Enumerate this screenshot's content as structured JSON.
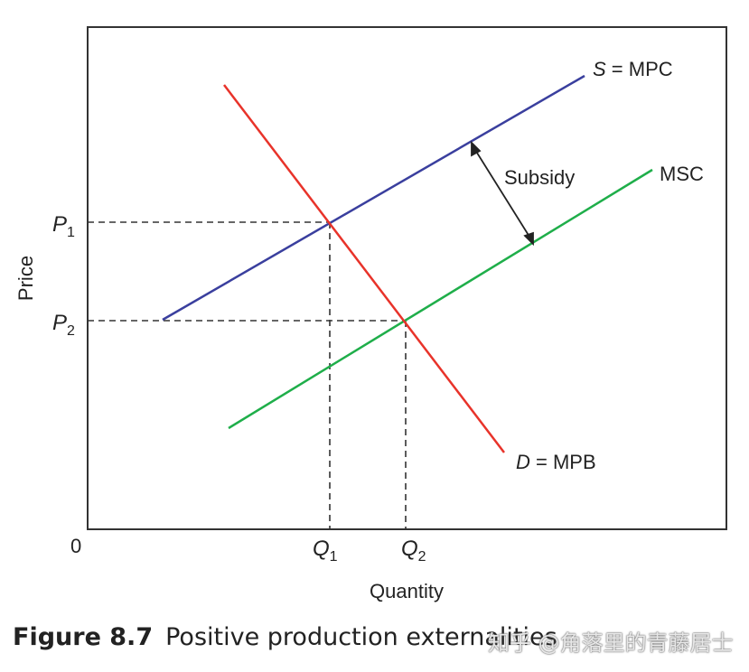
{
  "labels": {
    "origin": "0",
    "y_axis": "Price",
    "x_axis": "Quantity",
    "p1": "P",
    "p1_sub": "1",
    "p2": "P",
    "p2_sub": "2",
    "q1": "Q",
    "q1_sub": "1",
    "q2": "Q",
    "q2_sub": "2",
    "supply_letter": "S",
    "supply_rest": " = MPC",
    "msc": "MSC",
    "demand_letter": "D",
    "demand_rest": " = MPB",
    "subsidy": "Subsidy"
  },
  "colors": {
    "supply": "#3a3f9e",
    "msc": "#1fae4a",
    "demand": "#e8332a",
    "axis": "#333333",
    "guide": "#333333"
  },
  "caption": {
    "figure_number": "Figure 8.7",
    "title": "Positive production externalities"
  },
  "watermark": "知乎 @角落里的青藤居士"
}
